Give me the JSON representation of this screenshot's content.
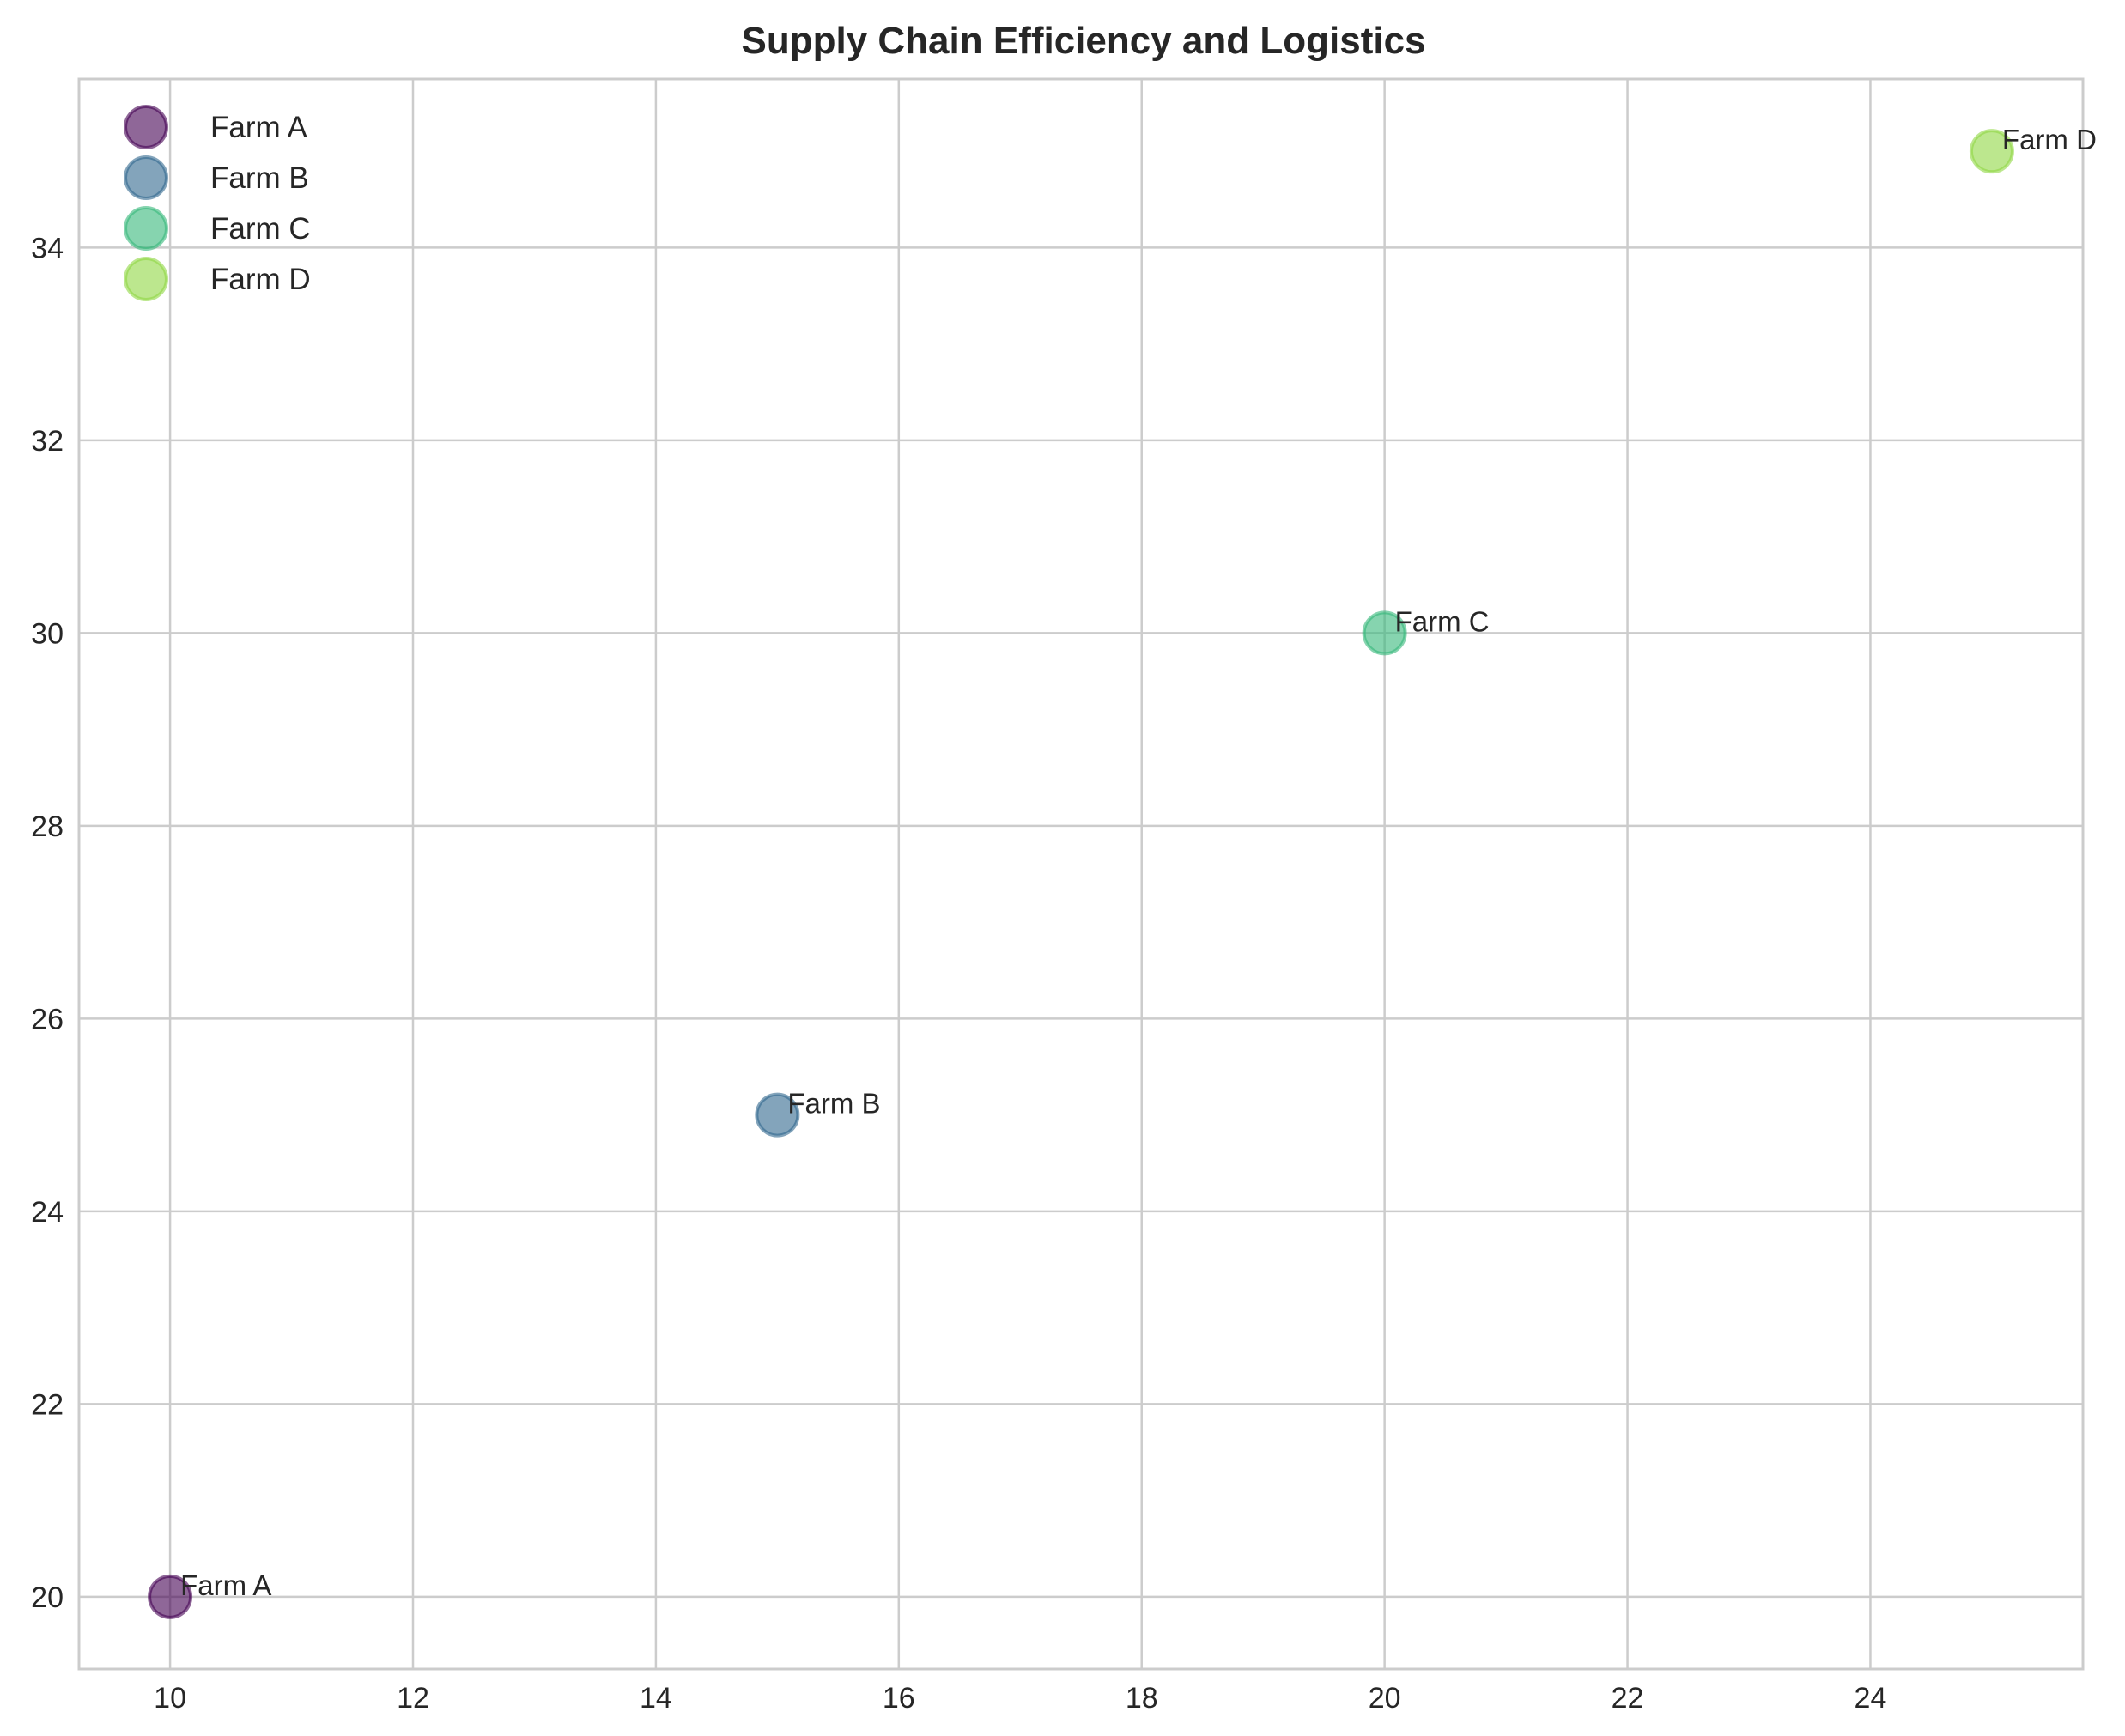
{
  "chart_data": {
    "type": "scatter",
    "title": "Supply Chain Efficiency and Logistics",
    "xlabel": "",
    "ylabel": "",
    "xlim": [
      9.25,
      25.75
    ],
    "ylim": [
      19.25,
      35.75
    ],
    "xticks": [
      10,
      12,
      14,
      16,
      18,
      20,
      22,
      24
    ],
    "yticks": [
      20,
      22,
      24,
      26,
      28,
      30,
      32,
      34
    ],
    "grid": true,
    "legend_position": "top-left",
    "series": [
      {
        "name": "Farm A",
        "color": "#440154",
        "x": [
          10
        ],
        "y": [
          20
        ]
      },
      {
        "name": "Farm B",
        "color": "#31688e",
        "x": [
          15
        ],
        "y": [
          25
        ]
      },
      {
        "name": "Farm C",
        "color": "#35b779",
        "x": [
          20
        ],
        "y": [
          30
        ]
      },
      {
        "name": "Farm D",
        "color": "#90d743",
        "x": [
          25
        ],
        "y": [
          35
        ]
      }
    ],
    "annotations": [
      {
        "text": "Farm A",
        "x": 10,
        "y": 20
      },
      {
        "text": "Farm B",
        "x": 15,
        "y": 25
      },
      {
        "text": "Farm C",
        "x": 20,
        "y": 30
      },
      {
        "text": "Farm D",
        "x": 25,
        "y": 35
      }
    ]
  }
}
